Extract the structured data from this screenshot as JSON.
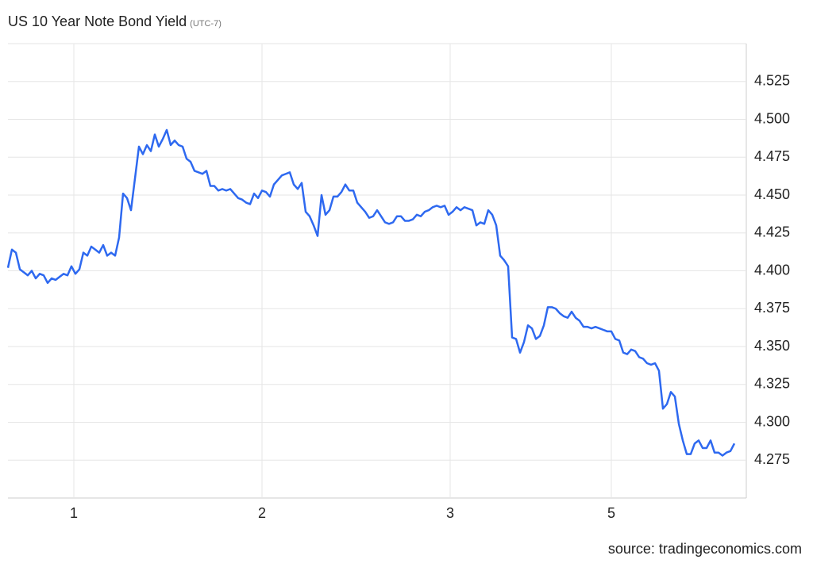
{
  "chart_data": {
    "type": "line",
    "title": "US 10 Year Note Bond Yield",
    "subtitle": "(UTC-7)",
    "source": "source: tradingeconomics.com",
    "series": [
      {
        "name": "US 10 Year Note Bond Yield",
        "color": "#2e69f0",
        "values": [
          4.402,
          4.414,
          4.412,
          4.401,
          4.399,
          4.397,
          4.4,
          4.395,
          4.398,
          4.397,
          4.392,
          4.395,
          4.394,
          4.396,
          4.398,
          4.397,
          4.403,
          4.398,
          4.401,
          4.412,
          4.41,
          4.416,
          4.414,
          4.412,
          4.417,
          4.41,
          4.412,
          4.41,
          4.422,
          4.451,
          4.448,
          4.44,
          4.461,
          4.482,
          4.477,
          4.483,
          4.479,
          4.49,
          4.482,
          4.487,
          4.493,
          4.483,
          4.486,
          4.483,
          4.482,
          4.474,
          4.472,
          4.466,
          4.465,
          4.464,
          4.466,
          4.456,
          4.456,
          4.453,
          4.454,
          4.453,
          4.454,
          4.451,
          4.448,
          4.447,
          4.445,
          4.444,
          4.451,
          4.448,
          4.453,
          4.452,
          4.449,
          4.457,
          4.46,
          4.463,
          4.464,
          4.465,
          4.457,
          4.454,
          4.458,
          4.439,
          4.436,
          4.43,
          4.423,
          4.45,
          4.437,
          4.44,
          4.449,
          4.449,
          4.452,
          4.457,
          4.453,
          4.453,
          4.445,
          4.442,
          4.439,
          4.435,
          4.436,
          4.44,
          4.436,
          4.432,
          4.431,
          4.432,
          4.436,
          4.436,
          4.433,
          4.433,
          4.434,
          4.437,
          4.436,
          4.439,
          4.44,
          4.442,
          4.443,
          4.442,
          4.443,
          4.437,
          4.439,
          4.442,
          4.44,
          4.442,
          4.441,
          4.44,
          4.43,
          4.432,
          4.431,
          4.44,
          4.437,
          4.43,
          4.41,
          4.407,
          4.403,
          4.356,
          4.355,
          4.346,
          4.353,
          4.364,
          4.362,
          4.355,
          4.357,
          4.364,
          4.376,
          4.376,
          4.375,
          4.372,
          4.37,
          4.369,
          4.373,
          4.369,
          4.367,
          4.363,
          4.363,
          4.362,
          4.363,
          4.362,
          4.361,
          4.36,
          4.36,
          4.355,
          4.354,
          4.346,
          4.345,
          4.348,
          4.347,
          4.343,
          4.342,
          4.339,
          4.338,
          4.339,
          4.334,
          4.309,
          4.312,
          4.32,
          4.317,
          4.299,
          4.288,
          4.279,
          4.279,
          4.286,
          4.288,
          4.283,
          4.283,
          4.288,
          4.28,
          4.28,
          4.278,
          4.28,
          4.281,
          4.286
        ]
      }
    ],
    "xlim": [
      0,
      186
    ],
    "xticks": [
      {
        "value": 16.6,
        "label": "1"
      },
      {
        "value": 64,
        "label": "2"
      },
      {
        "value": 111.4,
        "label": "3"
      },
      {
        "value": 152,
        "label": "5"
      }
    ],
    "ylim": [
      4.25,
      4.55
    ],
    "yticks": [
      4.275,
      {
        "value": 4.3,
        "label": "4.300"
      },
      4.325,
      {
        "value": 4.35,
        "label": "4.350"
      },
      4.375,
      {
        "value": 4.4,
        "label": "4.400"
      },
      4.425,
      {
        "value": 4.45,
        "label": "4.450"
      },
      4.475,
      {
        "value": 4.5,
        "label": "4.500"
      },
      4.525
    ],
    "grid": true
  }
}
